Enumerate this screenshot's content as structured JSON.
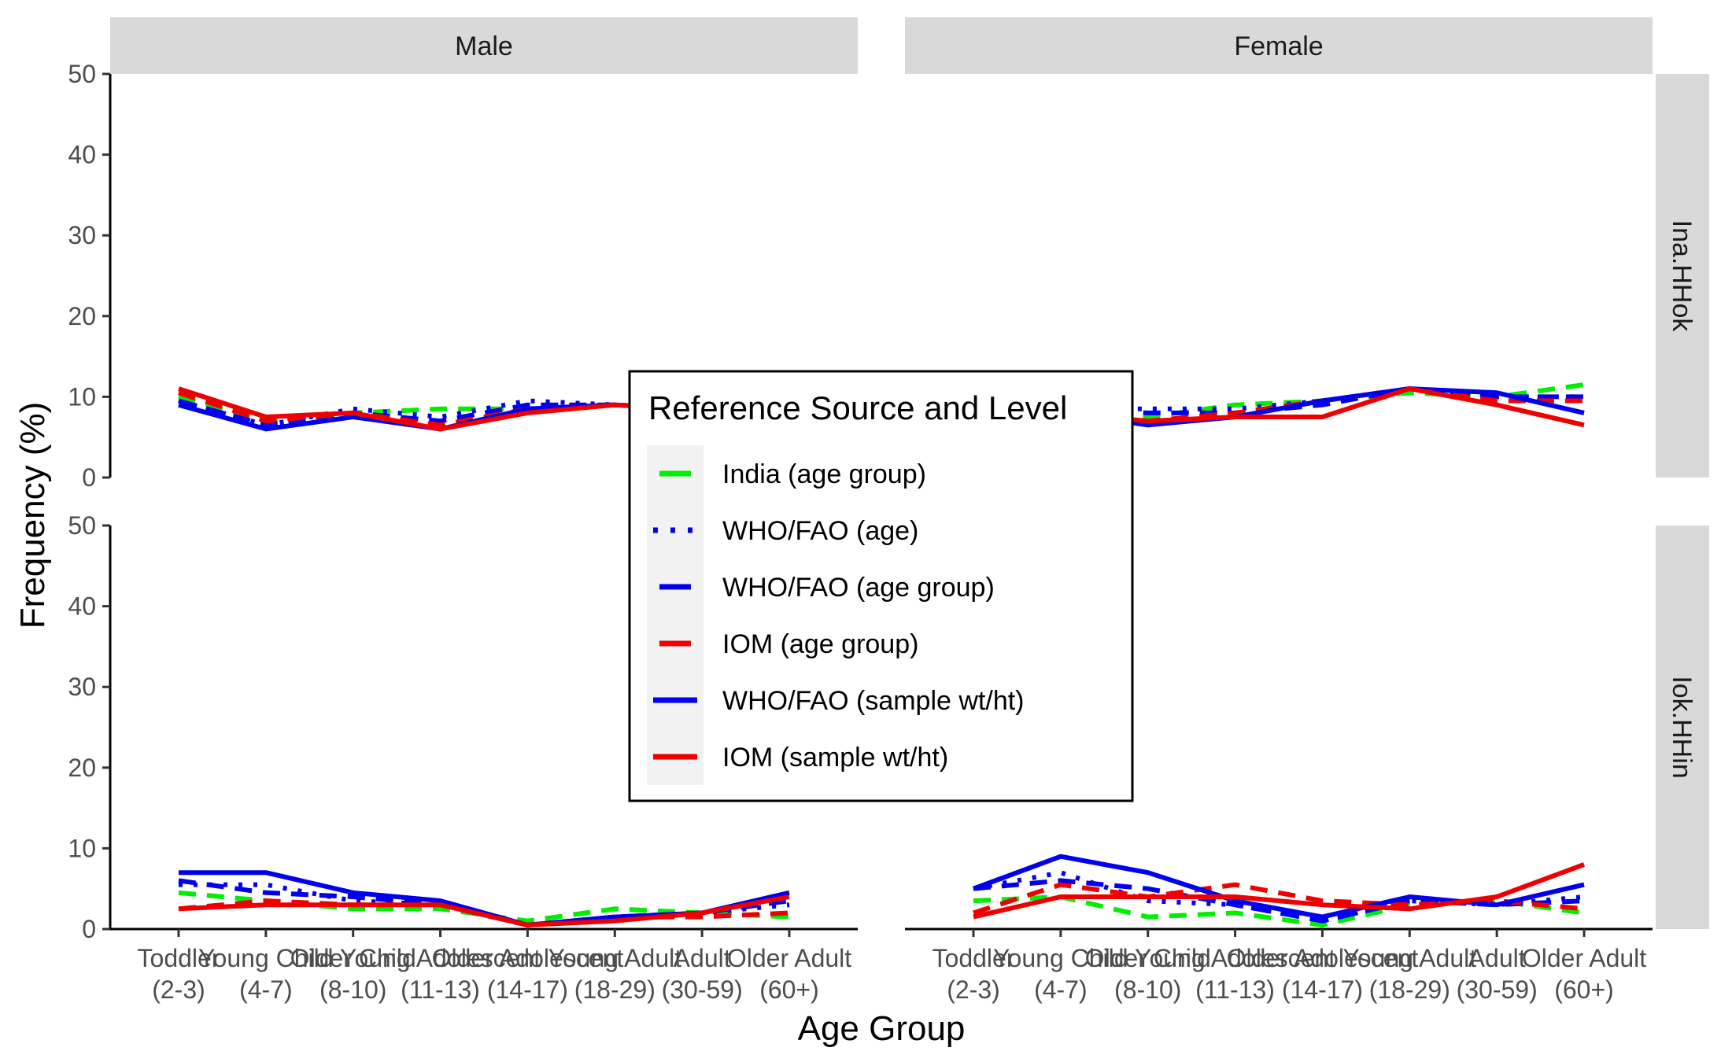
{
  "chart_data": {
    "type": "line",
    "xlabel": "Age Group",
    "ylabel": "Frequency (%)",
    "ylim": [
      0,
      50
    ],
    "yticks": [
      0,
      10,
      20,
      30,
      40,
      50
    ],
    "grid": false,
    "legend_title": "Reference Source and Level",
    "legend_position": "center",
    "columns": [
      "Male",
      "Female"
    ],
    "rows": [
      "Ina.HHok",
      "Iok.HHin"
    ],
    "categories": [
      [
        "Toddler",
        "(2-3)"
      ],
      [
        "Young Child",
        "(4-7)"
      ],
      [
        "Older Child",
        "(8-10)"
      ],
      [
        "Young Adolescent",
        "(11-13)"
      ],
      [
        "Older Adolescent",
        "(14-17)"
      ],
      [
        "Young Adult",
        "(18-29)"
      ],
      [
        "Adult",
        "(30-59)"
      ],
      [
        "Older Adult",
        "(60+)"
      ]
    ],
    "series": [
      {
        "name": "India (age group)",
        "color": "#00ee00",
        "dash": "dashed"
      },
      {
        "name": "WHO/FAO (age)",
        "color": "#0000ee",
        "dash": "dotted"
      },
      {
        "name": "WHO/FAO (age group)",
        "color": "#0000ee",
        "dash": "dashed"
      },
      {
        "name": "IOM (age group)",
        "color": "#ee0000",
        "dash": "dashed"
      },
      {
        "name": "WHO/FAO (sample wt/ht)",
        "color": "#0000ee",
        "dash": "solid"
      },
      {
        "name": "IOM (sample wt/ht)",
        "color": "#ee0000",
        "dash": "solid"
      }
    ],
    "panels": [
      {
        "column": "Male",
        "row": "Ina.HHok",
        "values": [
          [
            10.0,
            7.0,
            8.0,
            8.5,
            8.5,
            9.0,
            8.0,
            8.5
          ],
          [
            9.5,
            6.5,
            8.5,
            7.5,
            9.5,
            9.0,
            8.5,
            8.5
          ],
          [
            9.5,
            6.5,
            8.0,
            7.0,
            9.0,
            9.0,
            8.5,
            8.5
          ],
          [
            10.5,
            7.0,
            8.0,
            6.5,
            8.5,
            9.0,
            8.5,
            8.5
          ],
          [
            9.0,
            6.0,
            7.5,
            6.0,
            8.5,
            9.0,
            8.5,
            8.5
          ],
          [
            11.0,
            7.5,
            8.0,
            6.0,
            8.0,
            9.0,
            8.5,
            8.5
          ]
        ]
      },
      {
        "column": "Female",
        "row": "Ina.HHok",
        "values": [
          [
            8.0,
            8.5,
            7.5,
            9.0,
            9.5,
            10.5,
            10.0,
            11.5
          ],
          [
            8.0,
            8.5,
            8.5,
            8.5,
            9.5,
            11.0,
            10.0,
            10.0
          ],
          [
            8.0,
            8.5,
            8.0,
            8.0,
            9.0,
            11.0,
            10.0,
            10.0
          ],
          [
            8.0,
            8.0,
            7.0,
            8.0,
            9.5,
            11.0,
            9.5,
            9.5
          ],
          [
            8.0,
            8.0,
            6.5,
            7.5,
            9.5,
            11.0,
            10.5,
            8.0
          ],
          [
            8.0,
            8.0,
            7.0,
            7.5,
            7.5,
            11.0,
            9.0,
            6.5
          ]
        ]
      },
      {
        "column": "Male",
        "row": "Iok.HHin",
        "values": [
          [
            4.5,
            3.5,
            2.5,
            2.5,
            1.0,
            2.5,
            2.0,
            1.5
          ],
          [
            5.5,
            5.5,
            3.5,
            3.0,
            0.5,
            1.5,
            2.0,
            3.0
          ],
          [
            6.0,
            4.5,
            4.0,
            3.0,
            0.5,
            1.5,
            2.0,
            3.5
          ],
          [
            2.5,
            3.5,
            3.0,
            3.0,
            0.5,
            1.5,
            1.5,
            2.0
          ],
          [
            7.0,
            7.0,
            4.5,
            3.5,
            0.5,
            1.5,
            2.0,
            4.5
          ],
          [
            2.5,
            3.0,
            3.0,
            3.0,
            0.5,
            1.0,
            2.0,
            4.0
          ]
        ]
      },
      {
        "column": "Female",
        "row": "Iok.HHin",
        "values": [
          [
            3.5,
            4.0,
            1.5,
            2.0,
            0.5,
            3.0,
            3.5,
            2.0
          ],
          [
            5.0,
            7.0,
            3.5,
            3.0,
            1.0,
            3.5,
            3.0,
            4.0
          ],
          [
            5.0,
            6.0,
            5.0,
            3.0,
            1.0,
            3.5,
            3.0,
            3.5
          ],
          [
            2.0,
            5.5,
            4.0,
            5.5,
            3.5,
            3.0,
            3.5,
            2.5
          ],
          [
            5.0,
            9.0,
            7.0,
            3.5,
            1.5,
            4.0,
            3.0,
            5.5
          ],
          [
            1.5,
            4.0,
            4.0,
            4.0,
            3.0,
            2.5,
            4.0,
            8.0
          ]
        ]
      }
    ]
  }
}
